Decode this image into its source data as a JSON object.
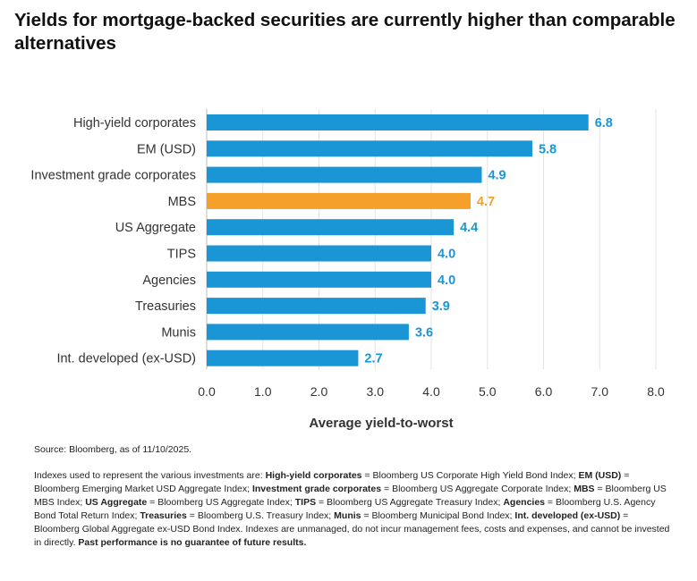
{
  "title": "Yields for mortgage-backed securities are currently higher than comparable alternatives",
  "source": "Source: Bloomberg, as of 11/10/2025.",
  "notes": {
    "intro": "Indexes used to represent the various investments are: ",
    "definitions": [
      {
        "term": "High-yield corporates",
        "desc": "Bloomberg US Corporate High Yield Bond Index"
      },
      {
        "term": "EM (USD)",
        "desc": "Bloomberg Emerging Market USD Aggregate Index"
      },
      {
        "term": "Investment grade corporates",
        "desc": "Bloomberg US Aggregate Corporate Index"
      },
      {
        "term": "MBS",
        "desc": "Bloomberg US MBS Index"
      },
      {
        "term": "US Aggregate",
        "desc": "Bloomberg US Aggregate Index"
      },
      {
        "term": "TIPS",
        "desc": "Bloomberg US Aggregate Treasury Index"
      },
      {
        "term": "Agencies",
        "desc": "Bloomberg U.S. Agency Bond Total Return Index"
      },
      {
        "term": "Treasuries",
        "desc": "Bloomberg U.S. Treasury Index"
      },
      {
        "term": "Munis",
        "desc": "Bloomberg Municipal Bond Index"
      },
      {
        "term": "Int. developed (ex-USD)",
        "desc": "Bloomberg Global Aggregate ex-USD Bond Index"
      }
    ],
    "disclaimer": " Indexes are unmanaged, do not incur management fees, costs and expenses, and cannot be invested in directly. ",
    "past_performance": "Past performance is no guarantee of future results."
  },
  "chart_data": {
    "type": "bar",
    "orientation": "horizontal",
    "categories": [
      "High-yield corporates",
      "EM (USD)",
      "Investment grade corporates",
      "MBS",
      "US Aggregate",
      "TIPS",
      "Agencies",
      "Treasuries",
      "Munis",
      "Int. developed (ex-USD)"
    ],
    "values": [
      6.8,
      5.8,
      4.9,
      4.7,
      4.4,
      4.0,
      4.0,
      3.9,
      3.6,
      2.7
    ],
    "value_labels": [
      "6.8",
      "5.8",
      "4.9",
      "4.7",
      "4.4",
      "4.0",
      "4.0",
      "3.9",
      "3.6",
      "2.7"
    ],
    "highlight_category": "MBS",
    "xlabel": "Average yield-to-worst",
    "xlim": [
      0,
      8
    ],
    "xticks": [
      0,
      1,
      2,
      3,
      4,
      5,
      6,
      7,
      8
    ],
    "xtick_labels": [
      "0.0",
      "1.0",
      "2.0",
      "3.0",
      "4.0",
      "5.0",
      "6.0",
      "7.0",
      "8.0"
    ],
    "grid": "vertical",
    "colors": {
      "bar": "#1a96d6",
      "highlight": "#f5a02a",
      "label": "#1a96d6",
      "highlight_label": "#f5a02a",
      "grid": "#e3e3e3",
      "axis_text": "#333333"
    }
  }
}
